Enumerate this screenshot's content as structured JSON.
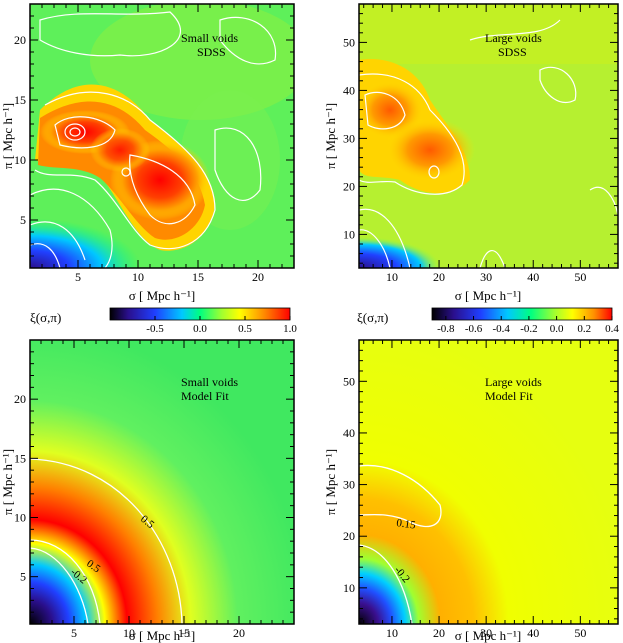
{
  "chart_data": [
    {
      "type": "heatmap",
      "panel": "top-left",
      "annotation": [
        "Small voids",
        "SDSS"
      ],
      "xlabel": "σ [ Mpc h⁻¹]",
      "ylabel": "π [ Mpc h⁻¹]",
      "xlim": [
        1,
        23
      ],
      "ylim": [
        1,
        23
      ],
      "xticks": [
        "5",
        "10",
        "15",
        "20"
      ],
      "yticks": [
        "5",
        "10",
        "15",
        "20"
      ],
      "contour_labels": []
    },
    {
      "type": "heatmap",
      "panel": "top-right",
      "annotation": [
        "Large voids",
        "SDSS"
      ],
      "xlabel": "σ [ Mpc h⁻¹]",
      "ylabel": "π [ Mpc h⁻¹]",
      "xlim": [
        3,
        58
      ],
      "ylim": [
        3,
        58
      ],
      "xticks": [
        "10",
        "20",
        "30",
        "40",
        "50"
      ],
      "yticks": [
        "10",
        "20",
        "30",
        "40",
        "50"
      ],
      "contour_labels": []
    },
    {
      "type": "heatmap",
      "panel": "bottom-left",
      "annotation": [
        "Small voids",
        "Model Fit"
      ],
      "xlabel": "σ [ Mpc h⁻¹]",
      "ylabel": "π [ Mpc h⁻¹]",
      "xlim": [
        1,
        25
      ],
      "ylim": [
        1,
        25
      ],
      "xticks": [
        "5",
        "10",
        "15",
        "20"
      ],
      "yticks": [
        "5",
        "10",
        "15",
        "20"
      ],
      "contour_labels": [
        "0.5",
        "0.5",
        "-0.2"
      ]
    },
    {
      "type": "heatmap",
      "panel": "bottom-right",
      "annotation": [
        "Large voids",
        "Model Fit"
      ],
      "xlabel": "σ [ Mpc h⁻¹]",
      "ylabel": "π [ Mpc h⁻¹]",
      "xlim": [
        3,
        58
      ],
      "ylim": [
        3,
        58
      ],
      "xticks": [
        "10",
        "20",
        "30",
        "40",
        "50"
      ],
      "yticks": [
        "10",
        "20",
        "30",
        "40",
        "50"
      ],
      "contour_labels": [
        "0.15",
        "-0.2"
      ]
    }
  ],
  "colorbars": [
    {
      "label": "ξ(σ,π)",
      "range": [
        -1.0,
        1.0
      ],
      "ticks": [
        "-0.5",
        "0.0",
        "0.5",
        "1.0"
      ],
      "tick_values": [
        -0.5,
        0.0,
        0.5,
        1.0
      ]
    },
    {
      "label": "ξ(σ,π)",
      "range": [
        -0.9,
        0.4
      ],
      "ticks": [
        "-0.8",
        "-0.6",
        "-0.4",
        "-0.2",
        "0.0",
        "0.2",
        "0.4"
      ],
      "tick_values": [
        -0.8,
        -0.6,
        -0.4,
        -0.2,
        0.0,
        0.2,
        0.4
      ]
    }
  ],
  "colors": {
    "scale": [
      "#000000",
      "#2a0f8c",
      "#1f3fff",
      "#00c8ff",
      "#00ff80",
      "#a0ff30",
      "#ffff00",
      "#ff9000",
      "#ff0000"
    ],
    "contour": "#ffffff"
  }
}
